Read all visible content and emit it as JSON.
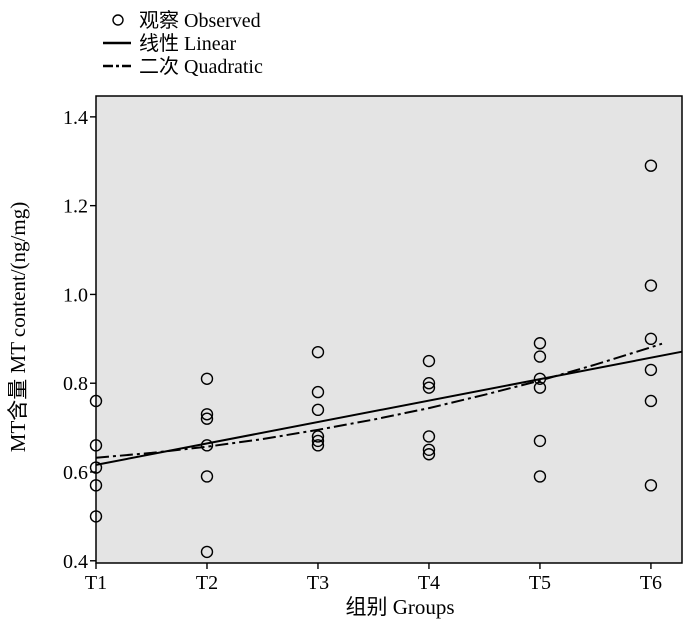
{
  "chart_data": {
    "type": "scatter",
    "title": "",
    "xlabel": "组别 Groups",
    "ylabel": "MT含量 MT content/(ng/mg)",
    "categories": [
      "T1",
      "T2",
      "T3",
      "T4",
      "T5",
      "T6"
    ],
    "xlim": [
      1,
      6.28
    ],
    "ylim": [
      0.395,
      1.447
    ],
    "yticks": [
      0.4,
      0.6,
      0.8,
      1.0,
      1.2,
      1.4
    ],
    "ytick_labels": [
      "0.4",
      "0.6",
      "0.8",
      "1.0",
      "1.2",
      "1.4"
    ],
    "grid": false,
    "legend": "top-left",
    "series": [
      {
        "name": "观察 Observed",
        "kind": "scatter",
        "marker": "open-circle",
        "points": [
          {
            "x": "T1",
            "y": [
              0.76,
              0.66,
              0.61,
              0.57,
              0.5
            ]
          },
          {
            "x": "T2",
            "y": [
              0.81,
              0.73,
              0.72,
              0.66,
              0.59,
              0.42
            ]
          },
          {
            "x": "T3",
            "y": [
              0.87,
              0.78,
              0.74,
              0.68,
              0.67,
              0.66
            ]
          },
          {
            "x": "T4",
            "y": [
              0.85,
              0.8,
              0.79,
              0.68,
              0.65,
              0.64
            ]
          },
          {
            "x": "T5",
            "y": [
              0.89,
              0.86,
              0.81,
              0.79,
              0.67,
              0.59
            ]
          },
          {
            "x": "T6",
            "y": [
              1.29,
              1.02,
              0.9,
              0.83,
              0.76,
              0.57
            ]
          }
        ]
      },
      {
        "name": "线性 Linear",
        "kind": "line",
        "style": "solid",
        "x": [
          1,
          6.28
        ],
        "y": [
          0.616,
          0.871
        ]
      },
      {
        "name": "二次 Quadratic",
        "kind": "line",
        "style": "dash-dot",
        "x": [
          1,
          1.5,
          2,
          2.5,
          3,
          3.5,
          4,
          4.5,
          5,
          5.5,
          6,
          6.1
        ],
        "y": [
          0.632,
          0.643,
          0.657,
          0.674,
          0.695,
          0.718,
          0.744,
          0.774,
          0.806,
          0.842,
          0.881,
          0.889
        ]
      }
    ]
  },
  "colors": {
    "plot_background": "#e4e4e4",
    "ink": "#000000"
  }
}
